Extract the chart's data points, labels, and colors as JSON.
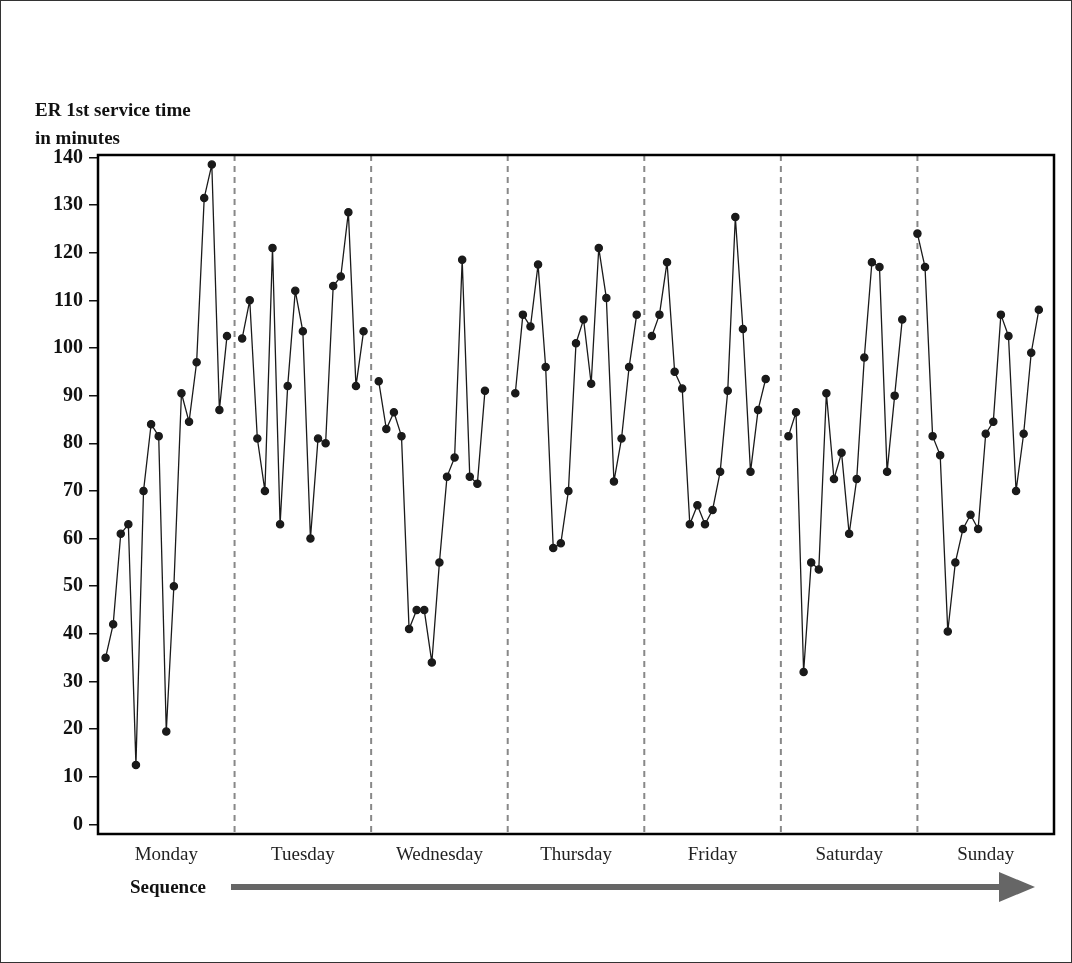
{
  "chart_data": {
    "type": "line",
    "title": "ER 1st service time in minutes",
    "xlabel": "Sequence",
    "categories": [
      null,
      null,
      null,
      null,
      null,
      null,
      null,
      null,
      null,
      "Monday",
      null,
      null,
      null,
      null,
      null,
      null,
      null,
      null,
      null,
      null,
      null,
      null,
      null,
      null,
      null,
      null,
      null,
      "Tuesday",
      null,
      null,
      null,
      null,
      null,
      null,
      null,
      null,
      null,
      null,
      null,
      null,
      null,
      null,
      null,
      null,
      null,
      "Wednesday",
      null,
      null,
      null,
      null,
      null,
      null,
      null,
      null,
      null,
      null,
      null,
      null,
      null,
      null,
      null,
      null,
      null,
      "Thursday",
      null,
      null,
      null,
      null,
      null,
      null,
      null,
      null,
      null,
      null,
      null,
      null,
      null,
      null,
      null,
      null,
      null,
      "Friday",
      null,
      null,
      null,
      null,
      null,
      null,
      null,
      null,
      null,
      null,
      null,
      null,
      null,
      null,
      null,
      null,
      null,
      "Saturday",
      null,
      null,
      null,
      null,
      null,
      null,
      null,
      null,
      null,
      null,
      null,
      null,
      null,
      null,
      null,
      null,
      null,
      "Sunday",
      null,
      null,
      null,
      null,
      null,
      null,
      null,
      null,
      null
    ],
    "ylim": [
      -2,
      140.5
    ],
    "yticks": [
      0,
      10,
      20,
      30,
      40,
      50,
      60,
      70,
      80,
      90,
      100,
      110,
      120,
      130,
      140
    ],
    "grid": false,
    "legend": false,
    "marker": "circle",
    "line_style": "solid",
    "series": [
      {
        "color": "#1a1a1a",
        "values": [
          null,
          35,
          42,
          61,
          63,
          12.5,
          70,
          84,
          81.5,
          19.5,
          50,
          90.5,
          84.5,
          97,
          131.5,
          138.5,
          87,
          102.5,
          null,
          102,
          110,
          81,
          70,
          121,
          63,
          92,
          112,
          103.5,
          60,
          81,
          80,
          113,
          115,
          128.5,
          92,
          103.5,
          null,
          93,
          83,
          86.5,
          81.5,
          41,
          45,
          45,
          34,
          55,
          73,
          77,
          118.5,
          73,
          71.5,
          91,
          null,
          null,
          null,
          90.5,
          107,
          104.5,
          117.5,
          96,
          58,
          59,
          70,
          101,
          106,
          92.5,
          121,
          110.5,
          72,
          81,
          96,
          107,
          null,
          102.5,
          107,
          118,
          95,
          91.5,
          63,
          67,
          63,
          66,
          74,
          91,
          127.5,
          104,
          74,
          87,
          93.5,
          null,
          null,
          81.5,
          86.5,
          32,
          55,
          53.5,
          90.5,
          72.5,
          78,
          61,
          72.5,
          98,
          118,
          117,
          74,
          90,
          106,
          null,
          124,
          117,
          81.5,
          77.5,
          40.5,
          55,
          62,
          65,
          62,
          82,
          84.5,
          107,
          102.5,
          70,
          82,
          99,
          108,
          null,
          null
        ]
      }
    ]
  }
}
